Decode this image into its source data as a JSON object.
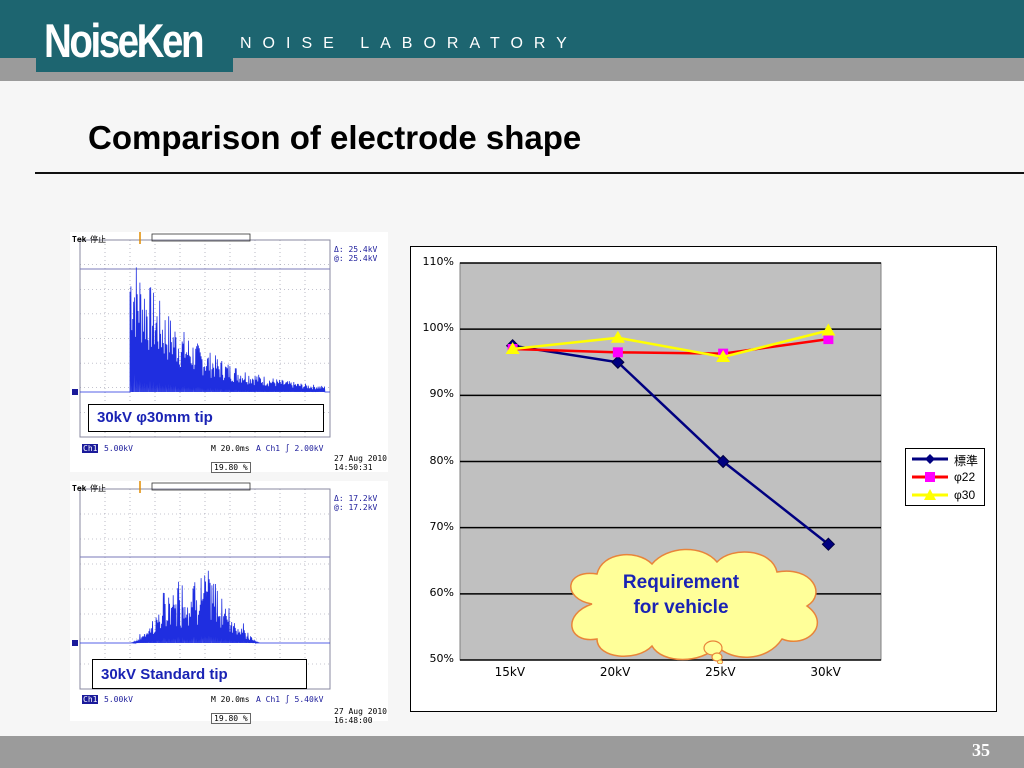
{
  "header": {
    "logo_text": "NoiseKen",
    "subtitle": "NOISE LABORATORY"
  },
  "slide": {
    "title": "Comparison of electrode shape",
    "page_number": "35"
  },
  "scope1": {
    "caption": "30kV  φ30mm tip",
    "tek": "Tek",
    "run_state": "停止",
    "delta": "Δ:  25.4kV",
    "at": "@:  25.4kV",
    "ch1_label": "Ch1",
    "ch1_scale": "5.00kV",
    "time": "M 20.0ms",
    "trig": "A  Ch1  ∫  2.00kV",
    "pos": "19.80 %",
    "date": "27 Aug 2010",
    "clock": "14:50:31"
  },
  "scope2": {
    "caption": "30kV  Standard  tip",
    "tek": "Tek",
    "run_state": "停止",
    "delta": "Δ:  17.2kV",
    "at": "@:  17.2kV",
    "ch1_label": "Ch1",
    "ch1_scale": "5.00kV",
    "time": "M 20.0ms",
    "trig": "A  Ch1  ∫  5.40kV",
    "pos": "19.80 %",
    "date": "27 Aug 2010",
    "clock": "16:48:00"
  },
  "chart_data": {
    "type": "line",
    "categories": [
      "15kV",
      "20kV",
      "25kV",
      "30kV"
    ],
    "y_ticks": [
      "110%",
      "100%",
      "90%",
      "80%",
      "70%",
      "60%",
      "50%"
    ],
    "ylim": [
      50,
      110
    ],
    "grid": true,
    "legend_position": "right",
    "series": [
      {
        "name": "標準",
        "values": [
          97.5,
          95,
          80,
          67.5
        ],
        "color": "#000080",
        "marker": "diamond"
      },
      {
        "name": "φ22",
        "values": [
          97,
          96.5,
          96.3,
          98.5
        ],
        "color": "#ff00ff",
        "line_color": "#ff0000",
        "marker": "square"
      },
      {
        "name": "φ30",
        "values": [
          97,
          98.7,
          95.8,
          99.8
        ],
        "color": "#ffff00",
        "marker": "triangle"
      }
    ],
    "annotation": {
      "line1": "Requirement",
      "line2": "for vehicle"
    }
  }
}
